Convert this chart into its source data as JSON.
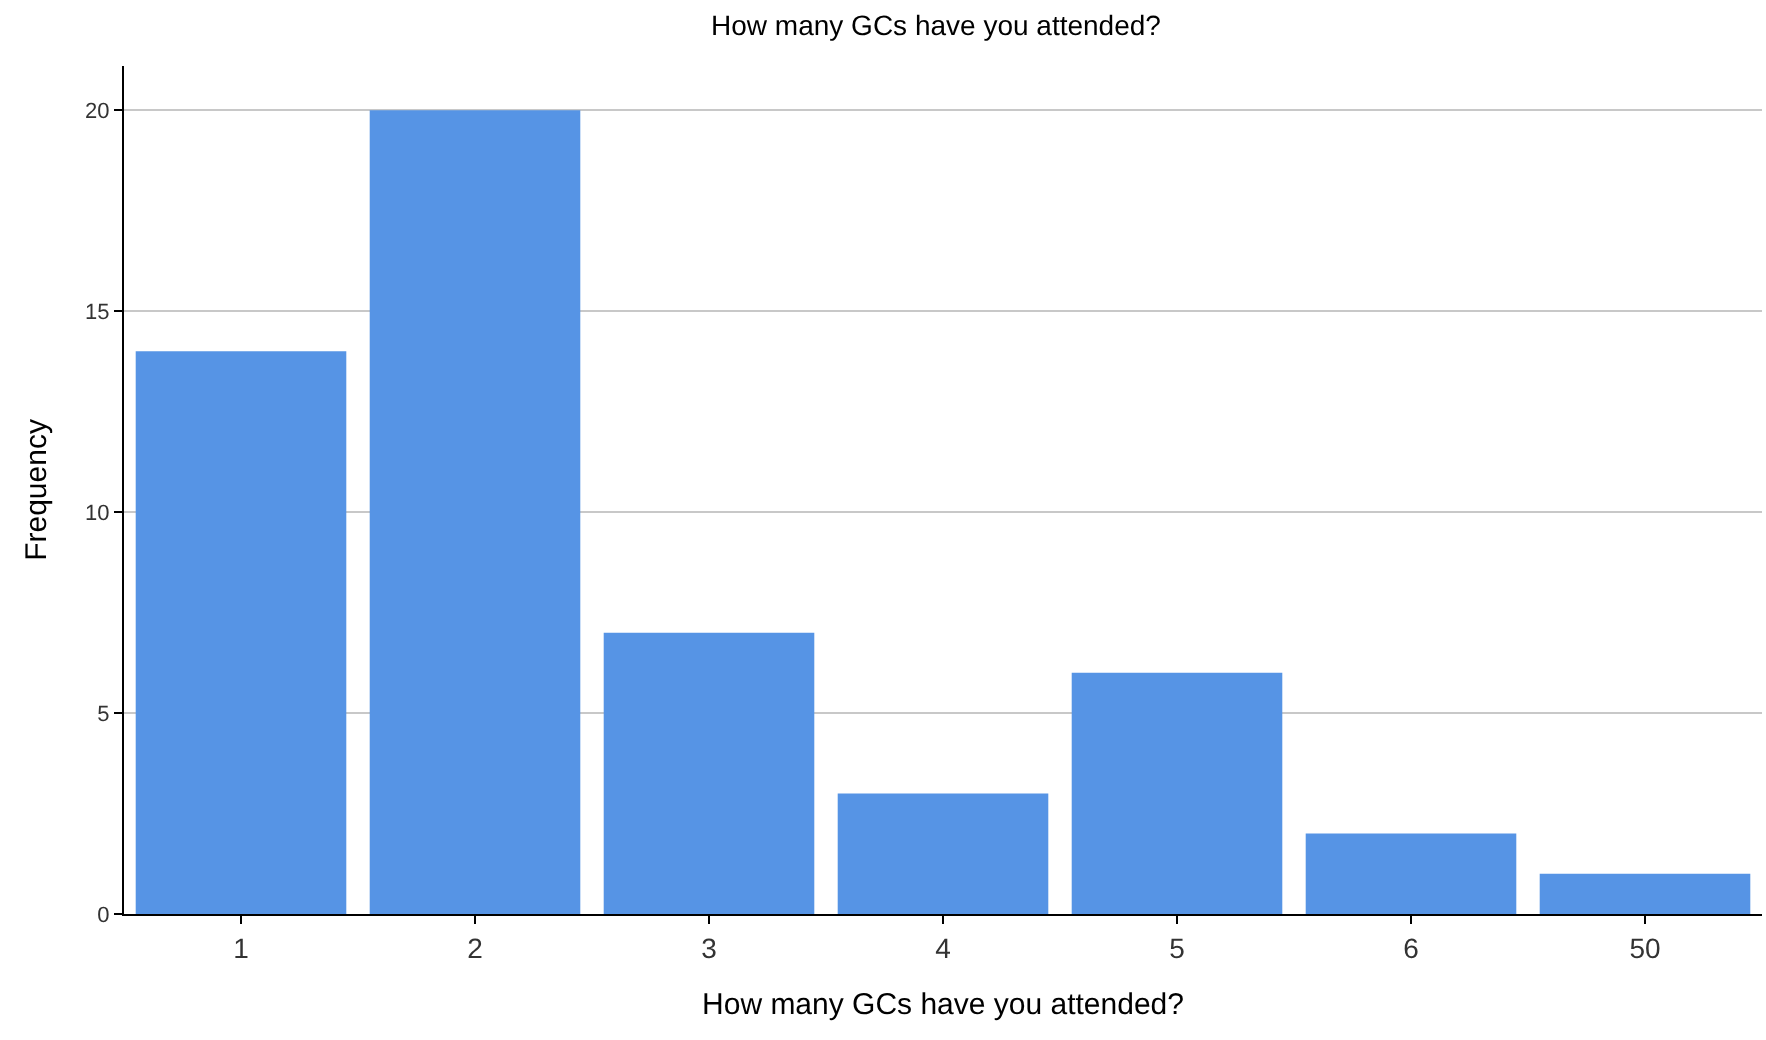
{
  "chart_data": {
    "type": "bar",
    "title": "How many GCs have you attended?",
    "xlabel": "How many GCs have you attended?",
    "ylabel": "Frequency",
    "categories": [
      "1",
      "2",
      "3",
      "4",
      "5",
      "6",
      "50"
    ],
    "values": [
      14,
      20,
      7,
      3,
      6,
      2,
      1
    ],
    "color": "#5694e5",
    "ylim": [
      0,
      21.1
    ],
    "yticks": [
      0,
      5,
      10,
      15,
      20
    ],
    "grid": "y",
    "legend": false
  }
}
